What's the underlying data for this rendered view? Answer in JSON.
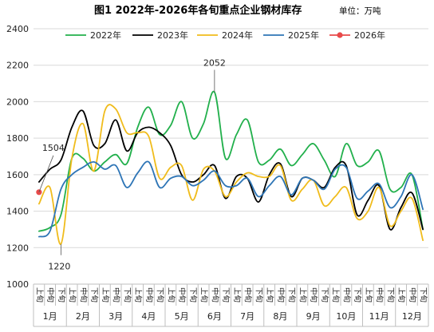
{
  "chart_data": {
    "type": "line",
    "title": "图1  2022年-2026年各旬重点企业钢材库存",
    "unit": "单位：万吨",
    "ylim": [
      1000,
      2400
    ],
    "yticks": [
      1000,
      1200,
      1400,
      1600,
      1800,
      2000,
      2200,
      2400
    ],
    "grid": "horizontal",
    "legend_position": "top",
    "x_tick_labels": [
      "上旬",
      "中旬",
      "下旬",
      "上旬",
      "中旬",
      "下旬",
      "上旬",
      "中旬",
      "下旬",
      "上旬",
      "中旬",
      "下旬",
      "上旬",
      "中旬",
      "下旬",
      "上旬",
      "中旬",
      "下旬",
      "上旬",
      "中旬",
      "下旬",
      "上旬",
      "中旬",
      "下旬",
      "上旬",
      "中旬",
      "下旬",
      "上旬",
      "中旬",
      "下旬",
      "上旬",
      "中旬",
      "下旬",
      "上旬",
      "中旬",
      "下旬"
    ],
    "months": [
      "1月",
      "2月",
      "3月",
      "4月",
      "5月",
      "6月",
      "7月",
      "8月",
      "9月",
      "10月",
      "11月",
      "12月"
    ],
    "annotations": [
      {
        "text": "2052",
        "series": "2022年",
        "index": 16
      },
      {
        "text": "1504",
        "series": "2026年",
        "index": 0
      },
      {
        "text": "1220",
        "series": "2024年",
        "index": 2
      }
    ],
    "series": [
      {
        "name": "2022年",
        "color": "#22b04c",
        "width": 1.8,
        "values": [
          1290,
          1310,
          1380,
          1690,
          1690,
          1620,
          1670,
          1710,
          1660,
          1860,
          1970,
          1820,
          1870,
          2000,
          1800,
          1880,
          2052,
          1690,
          1820,
          1900,
          1670,
          1680,
          1740,
          1650,
          1710,
          1770,
          1680,
          1590,
          1770,
          1650,
          1670,
          1730,
          1520,
          1530,
          1600,
          1300
        ]
      },
      {
        "name": "2023年",
        "color": "#000000",
        "width": 1.8,
        "values": [
          1560,
          1630,
          1680,
          1860,
          1950,
          1760,
          1770,
          1900,
          1730,
          1830,
          1860,
          1830,
          1760,
          1600,
          1560,
          1600,
          1650,
          1470,
          1590,
          1580,
          1450,
          1600,
          1660,
          1480,
          1580,
          1570,
          1530,
          1640,
          1650,
          1380,
          1460,
          1540,
          1300,
          1420,
          1500,
          1300
        ]
      },
      {
        "name": "2024年",
        "color": "#f0bc1c",
        "width": 1.8,
        "values": [
          1440,
          1530,
          1220,
          1690,
          1880,
          1620,
          1950,
          1960,
          1830,
          1830,
          1810,
          1580,
          1640,
          1650,
          1460,
          1630,
          1620,
          1480,
          1560,
          1610,
          1590,
          1590,
          1650,
          1460,
          1520,
          1570,
          1430,
          1480,
          1530,
          1360,
          1400,
          1530,
          1320,
          1400,
          1470,
          1240
        ]
      },
      {
        "name": "2025年",
        "color": "#2e75b6",
        "width": 1.8,
        "values": [
          1260,
          1290,
          1520,
          1600,
          1640,
          1670,
          1630,
          1650,
          1530,
          1610,
          1670,
          1530,
          1580,
          1590,
          1540,
          1570,
          1620,
          1540,
          1540,
          1580,
          1480,
          1540,
          1590,
          1490,
          1580,
          1570,
          1520,
          1630,
          1640,
          1470,
          1510,
          1550,
          1420,
          1480,
          1600,
          1410
        ]
      },
      {
        "name": "2026年",
        "color": "#e84a4a",
        "width": 1.8,
        "marker": "circle",
        "values": [
          1504
        ]
      }
    ]
  }
}
